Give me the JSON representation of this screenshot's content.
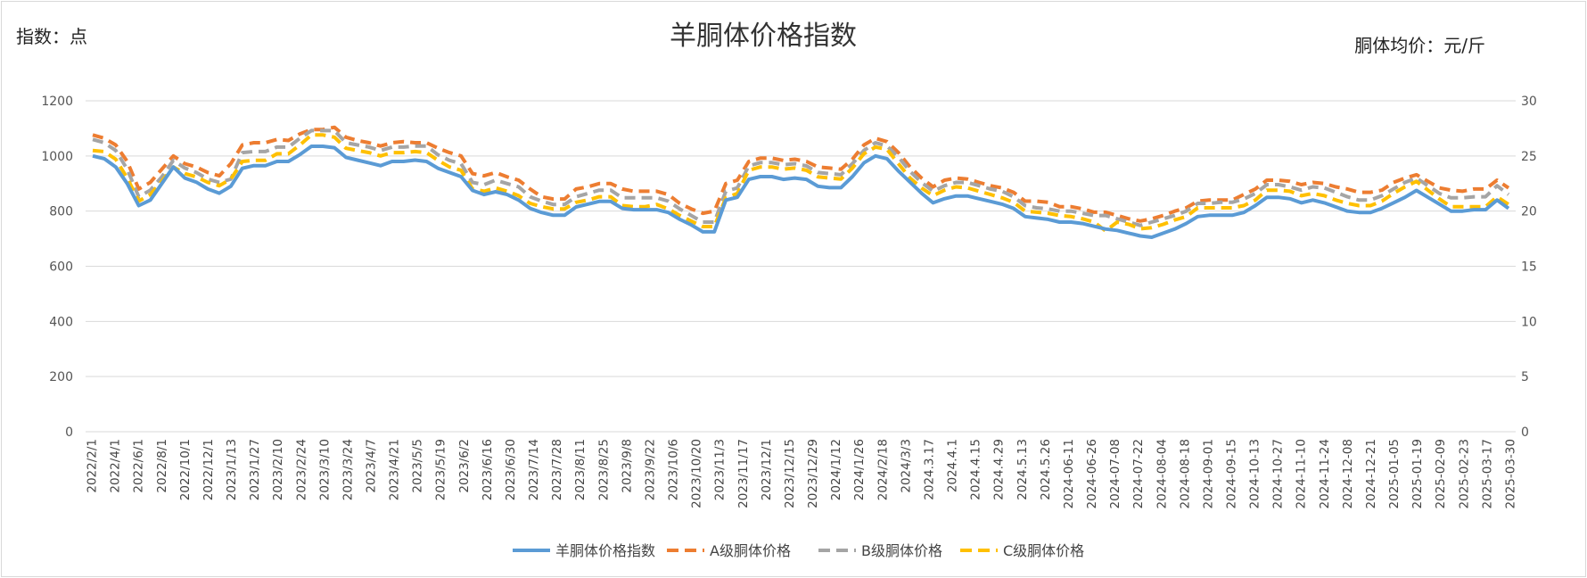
{
  "chart_data": {
    "type": "line",
    "title": "羊胴体价格指数",
    "left_axis_label": "指数：点",
    "right_axis_label": "胴体均价：元/斤",
    "left_ylim": [
      0,
      1200
    ],
    "left_yticks": [
      "0",
      "200",
      "400",
      "600",
      "800",
      "1000",
      "1200"
    ],
    "right_ylim": [
      0,
      30
    ],
    "right_yticks": [
      "0",
      "5",
      "10",
      "15",
      "20",
      "25",
      "30"
    ],
    "grid": true,
    "legend_position": "bottom",
    "x_tick_labels": [
      "2022/2/1",
      "2022/4/1",
      "2022/6/1",
      "2022/8/1",
      "2022/10/1",
      "2022/12/1",
      "2023/1/13",
      "2023/1/27",
      "2023/2/10",
      "2023/2/24",
      "2023/3/10",
      "2023/3/24",
      "2023/4/7",
      "2023/4/21",
      "2023/5/5",
      "2023/5/19",
      "2023/6/2",
      "2023/6/16",
      "2023/6/30",
      "2023/7/14",
      "2023/7/28",
      "2023/8/11",
      "2023/8/25",
      "2023/9/8",
      "2023/9/22",
      "2023/10/6",
      "2023/10/20",
      "2023/11/3",
      "2023/11/17",
      "2023/12/1",
      "2023/12/15",
      "2023/12/29",
      "2024/1/12",
      "2024/1/26",
      "2024/2/18",
      "2024/3/3",
      "2024.3.17",
      "2024.4.1",
      "2024.4.15",
      "2024.4.29",
      "2024.5.13",
      "2024.5.26",
      "2024-06-11",
      "2024-06-26",
      "2024-07-08",
      "2024-07-22",
      "2024-08-04",
      "2024-08-18",
      "2024-09-01",
      "2024-09-15",
      "2024-10-13",
      "2024-10-27",
      "2024-11-10",
      "2024-11-24",
      "2024-12-08",
      "2024-12-21",
      "2025-01-05",
      "2025-01-19",
      "2025-02-09",
      "2025-02-23",
      "2025-03-17",
      "2025-03-30"
    ],
    "series": [
      {
        "name": "羊胴体价格指数",
        "axis": "left",
        "color": "#5b9bd5",
        "dash": "solid",
        "values": [
          1000,
          990,
          960,
          900,
          820,
          840,
          900,
          960,
          920,
          905,
          880,
          865,
          890,
          955,
          965,
          965,
          980,
          980,
          1005,
          1035,
          1035,
          1030,
          995,
          985,
          975,
          965,
          980,
          980,
          985,
          980,
          955,
          940,
          925,
          875,
          860,
          870,
          860,
          840,
          810,
          795,
          785,
          785,
          815,
          825,
          835,
          835,
          810,
          805,
          805,
          805,
          795,
          770,
          750,
          725,
          725,
          840,
          850,
          915,
          925,
          925,
          915,
          920,
          915,
          890,
          885,
          885,
          925,
          975,
          1000,
          990,
          945,
          905,
          865,
          830,
          845,
          855,
          855,
          845,
          835,
          825,
          810,
          780,
          775,
          770,
          760,
          760,
          755,
          745,
          735,
          730,
          720,
          710,
          705,
          720,
          735,
          755,
          780,
          785,
          785,
          785,
          795,
          820,
          850,
          850,
          845,
          830,
          840,
          830,
          815,
          800,
          795,
          795,
          810,
          830,
          850,
          875,
          850,
          825,
          800,
          800,
          805,
          805,
          840,
          810
        ]
      },
      {
        "name": "A级胴体价格",
        "axis": "right",
        "color": "#ed7d31",
        "dash": "12 7",
        "values": [
          26.9,
          26.6,
          26.0,
          24.5,
          22.0,
          22.6,
          23.8,
          25.0,
          24.3,
          24.0,
          23.5,
          23.2,
          24.3,
          26.0,
          26.2,
          26.2,
          26.5,
          26.4,
          27.0,
          27.4,
          27.4,
          27.6,
          26.7,
          26.4,
          26.2,
          25.9,
          26.2,
          26.3,
          26.2,
          26.2,
          25.7,
          25.3,
          25.0,
          23.4,
          23.2,
          23.5,
          23.1,
          22.8,
          22.0,
          21.3,
          21.1,
          21.1,
          22.0,
          22.2,
          22.5,
          22.5,
          22.0,
          21.8,
          21.8,
          21.8,
          21.5,
          20.7,
          20.2,
          19.8,
          20.0,
          22.5,
          22.8,
          24.5,
          24.8,
          24.8,
          24.6,
          24.7,
          24.5,
          24.0,
          23.9,
          23.8,
          24.7,
          26.0,
          26.6,
          26.3,
          25.3,
          24.0,
          23.0,
          22.2,
          22.8,
          23.0,
          22.9,
          22.6,
          22.3,
          22.1,
          21.7,
          20.9,
          20.9,
          20.8,
          20.4,
          20.4,
          20.2,
          19.9,
          19.9,
          19.6,
          19.3,
          19.1,
          19.3,
          19.6,
          20.0,
          20.3,
          20.9,
          21.0,
          21.0,
          21.0,
          21.5,
          22.0,
          22.8,
          22.8,
          22.7,
          22.4,
          22.6,
          22.5,
          22.2,
          22.0,
          21.7,
          21.7,
          21.9,
          22.6,
          23.0,
          23.3,
          22.7,
          22.1,
          21.9,
          21.8,
          22.0,
          22.0,
          22.8,
          22.1
        ]
      },
      {
        "name": "B级胴体价格",
        "axis": "right",
        "color": "#a5a5a5",
        "dash": "12 7",
        "values": [
          26.5,
          26.2,
          25.5,
          23.8,
          21.3,
          21.9,
          23.1,
          24.6,
          23.9,
          23.5,
          22.9,
          22.6,
          22.9,
          25.3,
          25.4,
          25.4,
          25.8,
          25.8,
          26.6,
          27.3,
          27.3,
          27.3,
          26.2,
          26.0,
          25.8,
          25.5,
          25.8,
          25.8,
          25.9,
          25.9,
          25.1,
          24.6,
          24.3,
          22.6,
          22.4,
          22.8,
          22.5,
          22.2,
          21.3,
          20.9,
          20.6,
          20.6,
          21.3,
          21.6,
          21.9,
          21.9,
          21.2,
          21.2,
          21.2,
          21.2,
          20.9,
          20.2,
          19.6,
          19.0,
          19.0,
          21.8,
          22.1,
          24.1,
          24.4,
          24.4,
          24.2,
          24.3,
          24.1,
          23.5,
          23.4,
          23.3,
          24.3,
          25.5,
          26.2,
          25.9,
          24.9,
          23.6,
          22.6,
          21.8,
          22.3,
          22.6,
          22.6,
          22.3,
          22.0,
          21.8,
          21.3,
          20.5,
          20.3,
          20.2,
          20.0,
          20.0,
          19.8,
          19.6,
          19.6,
          19.3,
          19.0,
          18.7,
          19.0,
          19.3,
          19.6,
          20.0,
          20.7,
          20.7,
          20.8,
          20.8,
          21.1,
          21.6,
          22.4,
          22.4,
          22.2,
          21.9,
          22.2,
          22.1,
          21.7,
          21.3,
          21.0,
          21.0,
          21.4,
          22.0,
          22.6,
          23.0,
          22.3,
          21.6,
          21.2,
          21.2,
          21.3,
          21.3,
          22.3,
          21.5
        ]
      },
      {
        "name": "C级胴体价格",
        "axis": "right",
        "color": "#ffc000",
        "dash": "12 7",
        "values": [
          25.5,
          25.4,
          24.7,
          23.0,
          20.9,
          21.5,
          22.7,
          24.0,
          23.4,
          23.1,
          22.6,
          22.3,
          22.9,
          24.5,
          24.6,
          24.6,
          25.2,
          25.2,
          26.0,
          26.9,
          26.9,
          26.7,
          25.7,
          25.5,
          25.3,
          25.0,
          25.3,
          25.3,
          25.4,
          25.3,
          24.6,
          24.0,
          23.7,
          22.0,
          21.8,
          22.1,
          21.8,
          21.4,
          20.7,
          20.4,
          20.2,
          20.2,
          20.8,
          21.0,
          21.3,
          21.3,
          20.5,
          20.4,
          20.4,
          20.6,
          20.2,
          19.6,
          19.1,
          18.6,
          18.6,
          21.2,
          21.6,
          23.7,
          24.0,
          24.0,
          23.8,
          23.9,
          23.7,
          23.1,
          23.0,
          22.9,
          23.9,
          25.2,
          25.8,
          25.6,
          24.3,
          23.0,
          22.1,
          21.4,
          21.9,
          22.2,
          22.1,
          21.8,
          21.5,
          21.2,
          20.8,
          20.0,
          19.9,
          19.8,
          19.6,
          19.5,
          19.3,
          19.0,
          18.2,
          19.0,
          18.8,
          18.4,
          18.5,
          18.8,
          19.2,
          19.5,
          20.3,
          20.3,
          20.3,
          20.3,
          20.5,
          21.0,
          21.9,
          21.9,
          21.8,
          21.4,
          21.6,
          21.4,
          21.0,
          20.7,
          20.5,
          20.5,
          20.9,
          21.6,
          22.2,
          22.7,
          21.9,
          21.1,
          20.4,
          20.4,
          20.4,
          20.4,
          21.3,
          20.6
        ]
      }
    ]
  }
}
